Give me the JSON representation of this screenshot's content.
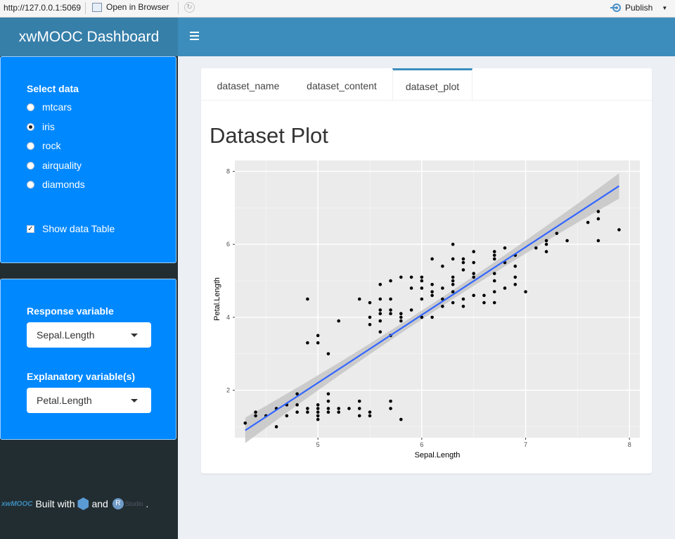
{
  "browser": {
    "url": "http://127.0.0.1:5069",
    "open_label": "Open in Browser",
    "publish_label": "Publish"
  },
  "header": {
    "title": "xwMOOC Dashboard"
  },
  "sidebar": {
    "select_data_label": "Select data",
    "datasets": [
      {
        "label": "mtcars",
        "checked": false
      },
      {
        "label": "iris",
        "checked": true
      },
      {
        "label": "rock",
        "checked": false
      },
      {
        "label": "airquality",
        "checked": false
      },
      {
        "label": "diamonds",
        "checked": false
      }
    ],
    "show_table_label": "Show data Table",
    "show_table_checked": true,
    "response_label": "Response variable",
    "response_value": "Sepal.Length",
    "explanatory_label": "Explanatory variable(s)",
    "explanatory_value": "Petal.Length",
    "footer": {
      "brand": "xwMOOC",
      "built_with": "Built with",
      "and": "and",
      "r_letter": "R",
      "studio": "Studio",
      "dot": "."
    }
  },
  "tabs": [
    {
      "label": "dataset_name",
      "active": false
    },
    {
      "label": "dataset_content",
      "active": false
    },
    {
      "label": "dataset_plot",
      "active": true
    }
  ],
  "main": {
    "plot_heading": "Dataset Plot"
  },
  "colors": {
    "panel": "#ebebeb",
    "line": "#3366ff",
    "ribbon": "#c5c5c5",
    "points": "#000000"
  },
  "chart_data": {
    "type": "scatter",
    "title": "",
    "xlabel": "Sepal.Length",
    "ylabel": "Petal.Length",
    "xlim": [
      4.2,
      8.1
    ],
    "ylim": [
      0.7,
      8.3
    ],
    "xticks": [
      5,
      6,
      7,
      8
    ],
    "yticks": [
      2,
      4,
      6,
      8
    ],
    "grid": true,
    "points": [
      [
        4.3,
        1.1
      ],
      [
        4.4,
        1.4
      ],
      [
        4.4,
        1.3
      ],
      [
        4.5,
        1.3
      ],
      [
        4.6,
        1.5
      ],
      [
        4.6,
        1.0
      ],
      [
        4.7,
        1.6
      ],
      [
        4.7,
        1.3
      ],
      [
        4.8,
        1.6
      ],
      [
        4.8,
        1.4
      ],
      [
        4.8,
        1.9
      ],
      [
        4.9,
        1.5
      ],
      [
        4.9,
        1.4
      ],
      [
        4.9,
        3.3
      ],
      [
        4.9,
        4.5
      ],
      [
        5.0,
        1.2
      ],
      [
        5.0,
        1.3
      ],
      [
        5.0,
        1.4
      ],
      [
        5.0,
        1.5
      ],
      [
        5.0,
        1.6
      ],
      [
        5.0,
        3.3
      ],
      [
        5.0,
        3.5
      ],
      [
        5.1,
        1.4
      ],
      [
        5.1,
        1.5
      ],
      [
        5.1,
        1.7
      ],
      [
        5.1,
        1.9
      ],
      [
        5.1,
        3.0
      ],
      [
        5.2,
        1.4
      ],
      [
        5.2,
        1.5
      ],
      [
        5.2,
        3.9
      ],
      [
        5.3,
        1.5
      ],
      [
        5.4,
        1.3
      ],
      [
        5.4,
        1.5
      ],
      [
        5.4,
        1.7
      ],
      [
        5.4,
        4.5
      ],
      [
        5.5,
        1.3
      ],
      [
        5.5,
        1.4
      ],
      [
        5.5,
        3.8
      ],
      [
        5.5,
        4.0
      ],
      [
        5.5,
        4.4
      ],
      [
        5.6,
        3.6
      ],
      [
        5.6,
        3.9
      ],
      [
        5.6,
        4.1
      ],
      [
        5.6,
        4.2
      ],
      [
        5.6,
        4.5
      ],
      [
        5.6,
        4.9
      ],
      [
        5.7,
        1.5
      ],
      [
        5.7,
        1.7
      ],
      [
        5.7,
        3.5
      ],
      [
        5.7,
        4.1
      ],
      [
        5.7,
        4.2
      ],
      [
        5.7,
        4.5
      ],
      [
        5.7,
        5.0
      ],
      [
        5.8,
        1.2
      ],
      [
        5.8,
        3.9
      ],
      [
        5.8,
        4.0
      ],
      [
        5.8,
        4.1
      ],
      [
        5.8,
        5.1
      ],
      [
        5.9,
        4.2
      ],
      [
        5.9,
        4.8
      ],
      [
        5.9,
        5.1
      ],
      [
        6.0,
        4.0
      ],
      [
        6.0,
        4.5
      ],
      [
        6.0,
        4.8
      ],
      [
        6.0,
        5.0
      ],
      [
        6.0,
        5.1
      ],
      [
        6.1,
        4.0
      ],
      [
        6.1,
        4.6
      ],
      [
        6.1,
        4.7
      ],
      [
        6.1,
        4.9
      ],
      [
        6.1,
        5.6
      ],
      [
        6.2,
        4.3
      ],
      [
        6.2,
        4.5
      ],
      [
        6.2,
        4.8
      ],
      [
        6.2,
        5.4
      ],
      [
        6.3,
        4.4
      ],
      [
        6.3,
        4.7
      ],
      [
        6.3,
        4.9
      ],
      [
        6.3,
        5.0
      ],
      [
        6.3,
        5.1
      ],
      [
        6.3,
        5.6
      ],
      [
        6.3,
        6.0
      ],
      [
        6.4,
        4.3
      ],
      [
        6.4,
        4.5
      ],
      [
        6.4,
        5.3
      ],
      [
        6.4,
        5.5
      ],
      [
        6.4,
        5.6
      ],
      [
        6.5,
        4.6
      ],
      [
        6.5,
        5.1
      ],
      [
        6.5,
        5.2
      ],
      [
        6.5,
        5.5
      ],
      [
        6.5,
        5.8
      ],
      [
        6.6,
        4.4
      ],
      [
        6.6,
        4.6
      ],
      [
        6.7,
        4.4
      ],
      [
        6.7,
        4.7
      ],
      [
        6.7,
        5.0
      ],
      [
        6.7,
        5.2
      ],
      [
        6.7,
        5.6
      ],
      [
        6.7,
        5.7
      ],
      [
        6.7,
        5.8
      ],
      [
        6.8,
        4.8
      ],
      [
        6.8,
        5.5
      ],
      [
        6.8,
        5.9
      ],
      [
        6.9,
        4.9
      ],
      [
        6.9,
        5.1
      ],
      [
        6.9,
        5.4
      ],
      [
        6.9,
        5.7
      ],
      [
        7.0,
        4.7
      ],
      [
        7.1,
        5.9
      ],
      [
        7.2,
        5.8
      ],
      [
        7.2,
        6.0
      ],
      [
        7.2,
        6.1
      ],
      [
        7.3,
        6.3
      ],
      [
        7.4,
        6.1
      ],
      [
        7.6,
        6.6
      ],
      [
        7.7,
        6.1
      ],
      [
        7.7,
        6.7
      ],
      [
        7.7,
        6.9
      ],
      [
        7.9,
        6.4
      ]
    ],
    "fit_line": {
      "x": [
        4.3,
        7.9
      ],
      "y": [
        0.9,
        7.6
      ]
    },
    "confidence_band_halfwidth": {
      "ends": 0.35,
      "center": 0.12
    }
  }
}
